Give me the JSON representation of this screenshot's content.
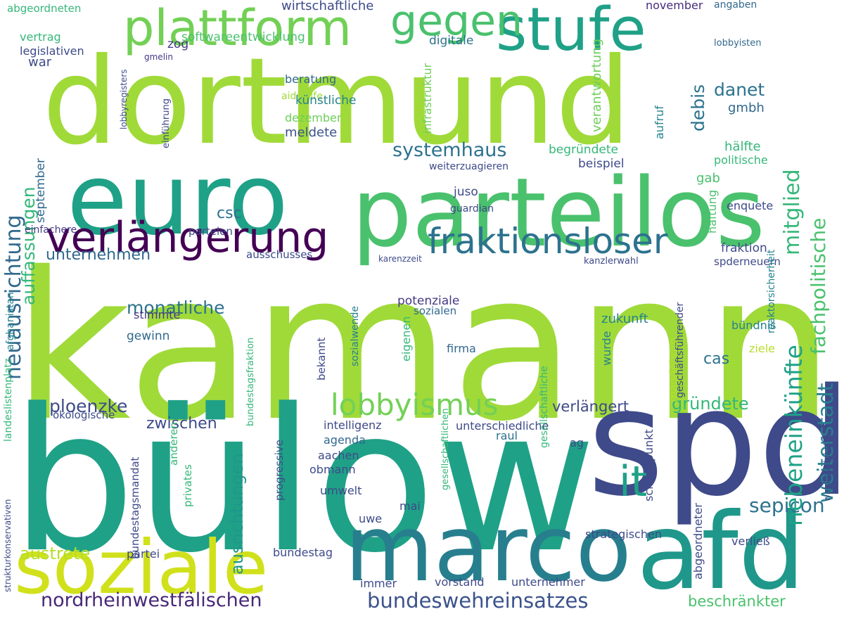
{
  "words": [
    {
      "text": "kamann",
      "color": "#a0da39"
    },
    {
      "text": "bülow",
      "color": "#1fa187"
    },
    {
      "text": "dortmund",
      "color": "#a0da39"
    },
    {
      "text": "euro",
      "color": "#1fa187"
    },
    {
      "text": "parteilos",
      "color": "#4ac16d"
    },
    {
      "text": "spd",
      "color": "#3e4a89"
    },
    {
      "text": "marco",
      "color": "#277f8e"
    },
    {
      "text": "afd",
      "color": "#1f988b"
    },
    {
      "text": "soziale",
      "color": "#d0e11c"
    },
    {
      "text": "stufe",
      "color": "#1fa187"
    },
    {
      "text": "plattform",
      "color": "#73d056"
    },
    {
      "text": "verlängerung",
      "color": "#440154"
    },
    {
      "text": "fraktionsloser",
      "color": "#2c728e"
    },
    {
      "text": "lobbyismus",
      "color": "#73d056"
    },
    {
      "text": "gegen",
      "color": "#4ac16d"
    },
    {
      "text": "it",
      "color": "#1fa187"
    },
    {
      "text": "bundeswehreinsatzes",
      "color": "#3b528b"
    },
    {
      "text": "nordrheinwestfälischen",
      "color": "#482878"
    },
    {
      "text": "systemhaus",
      "color": "#2c728e"
    },
    {
      "text": "sepicon",
      "color": "#2c728e"
    },
    {
      "text": "weiterstadt",
      "color": "#277f8e"
    },
    {
      "text": "nebeneinkünfte",
      "color": "#1fa187"
    },
    {
      "text": "fachpolitische",
      "color": "#4ac16d"
    },
    {
      "text": "mitglied",
      "color": "#35b779"
    },
    {
      "text": "neuausrichtung",
      "color": "#31688e"
    },
    {
      "text": "auffassungen",
      "color": "#35b779"
    },
    {
      "text": "ploenzke",
      "color": "#3e4a89"
    },
    {
      "text": "monatliche",
      "color": "#2c728e"
    },
    {
      "text": "zwischen",
      "color": "#3e4a89"
    },
    {
      "text": "gründete",
      "color": "#35b779"
    },
    {
      "text": "danet",
      "color": "#2c728e"
    },
    {
      "text": "debis",
      "color": "#2c728e"
    },
    {
      "text": "austrete",
      "color": "#b5de2b"
    },
    {
      "text": "unternehmen",
      "color": "#31688e"
    },
    {
      "text": "ausrichtungen",
      "color": "#1f988b"
    },
    {
      "text": "csc",
      "color": "#2c728e"
    },
    {
      "text": "cas",
      "color": "#2c728e"
    },
    {
      "text": "verlängert",
      "color": "#3e4a89"
    },
    {
      "text": "beschränkter",
      "color": "#4ac16d"
    },
    {
      "text": "wirtschaftliche",
      "color": "#3e4a89"
    },
    {
      "text": "softwareentwicklung",
      "color": "#4ac16d"
    },
    {
      "text": "abgeordneten",
      "color": "#35b779"
    },
    {
      "text": "vertrag",
      "color": "#35b779"
    },
    {
      "text": "legislativen",
      "color": "#3e4a89"
    },
    {
      "text": "war",
      "color": "#3e4a89"
    },
    {
      "text": "zog",
      "color": "#443983"
    },
    {
      "text": "gmelin",
      "color": "#443983"
    },
    {
      "text": "beratung",
      "color": "#31688e"
    },
    {
      "text": "aidshilfe",
      "color": "#a0da39"
    },
    {
      "text": "künstliche",
      "color": "#26828e"
    },
    {
      "text": "dezember",
      "color": "#6ece58"
    },
    {
      "text": "meldete",
      "color": "#3b528b"
    },
    {
      "text": "digitale",
      "color": "#2c728e"
    },
    {
      "text": "infrastruktur",
      "color": "#6ece58"
    },
    {
      "text": "verantwortung",
      "color": "#6ece58"
    },
    {
      "text": "november",
      "color": "#472d7b"
    },
    {
      "text": "angaben",
      "color": "#31688e"
    },
    {
      "text": "lobbyisten",
      "color": "#31688e"
    },
    {
      "text": "gmbh",
      "color": "#31688e"
    },
    {
      "text": "aufruf",
      "color": "#26828e"
    },
    {
      "text": "hälfte",
      "color": "#35b779"
    },
    {
      "text": "politische",
      "color": "#35b779"
    },
    {
      "text": "begründete",
      "color": "#35b779"
    },
    {
      "text": "beispiel",
      "color": "#3e4a89"
    },
    {
      "text": "weiterzuagieren",
      "color": "#3e4a89"
    },
    {
      "text": "gab",
      "color": "#4ac16d"
    },
    {
      "text": "haftung",
      "color": "#4ac16d"
    },
    {
      "text": "enquete",
      "color": "#3e4a89"
    },
    {
      "text": "fraktion",
      "color": "#3e4a89"
    },
    {
      "text": "spderneuern",
      "color": "#3e4a89"
    },
    {
      "text": "juso",
      "color": "#3e4a89"
    },
    {
      "text": "guardian",
      "color": "#3e4a89"
    },
    {
      "text": "parteien",
      "color": "#3e4a89"
    },
    {
      "text": "ausschusses",
      "color": "#3e4a89"
    },
    {
      "text": "einfachere",
      "color": "#443983"
    },
    {
      "text": "september",
      "color": "#31688e"
    },
    {
      "text": "potenziale",
      "color": "#443983"
    },
    {
      "text": "sozialen",
      "color": "#31688e"
    },
    {
      "text": "stimmte",
      "color": "#443983"
    },
    {
      "text": "gewinn",
      "color": "#31688e"
    },
    {
      "text": "sozialwende",
      "color": "#277f8e"
    },
    {
      "text": "eigenen",
      "color": "#35b779"
    },
    {
      "text": "zukunft",
      "color": "#26828e"
    },
    {
      "text": "wurde",
      "color": "#26828e"
    },
    {
      "text": "bündnis",
      "color": "#26828e"
    },
    {
      "text": "ziele",
      "color": "#b5de2b"
    },
    {
      "text": "magdeburg",
      "color": "#b5de2b"
    },
    {
      "text": "firma",
      "color": "#31688e"
    },
    {
      "text": "intelligenz",
      "color": "#3e4a89"
    },
    {
      "text": "agenda",
      "color": "#31688e"
    },
    {
      "text": "unterschiedliche",
      "color": "#3e4a89"
    },
    {
      "text": "ag",
      "color": "#3e4a89"
    },
    {
      "text": "raul",
      "color": "#2c728e"
    },
    {
      "text": "aachen",
      "color": "#3e4a89"
    },
    {
      "text": "obmann",
      "color": "#3e4a89"
    },
    {
      "text": "umwelt",
      "color": "#3e4a89"
    },
    {
      "text": "mai",
      "color": "#3e4a89"
    },
    {
      "text": "uwe",
      "color": "#3e4a89"
    },
    {
      "text": "schwerpunkt",
      "color": "#3e4a89"
    },
    {
      "text": "strategischen",
      "color": "#3e4a89"
    },
    {
      "text": "verließ",
      "color": "#3e4a89"
    },
    {
      "text": "bundestag",
      "color": "#3e4a89"
    },
    {
      "text": "partei",
      "color": "#3e4a89"
    },
    {
      "text": "vorstand",
      "color": "#3e4a89"
    },
    {
      "text": "unternehmer",
      "color": "#3e4a89"
    },
    {
      "text": "immer",
      "color": "#3e4a89"
    },
    {
      "text": "abgeordneter",
      "color": "#3e4a89"
    },
    {
      "text": "privates",
      "color": "#35b779"
    },
    {
      "text": "anderen",
      "color": "#35b779"
    },
    {
      "text": "bundestagsmandat",
      "color": "#3e4a89"
    },
    {
      "text": "progressive",
      "color": "#3e4a89"
    },
    {
      "text": "bekannt",
      "color": "#3e4a89"
    },
    {
      "text": "ökologische",
      "color": "#3e4a89"
    },
    {
      "text": "afghanistan",
      "color": "#26828e"
    },
    {
      "text": "landeslistenplatz",
      "color": "#35b779"
    },
    {
      "text": "geschäftsführender",
      "color": "#3e4a89"
    },
    {
      "text": "reaktorsicherheit",
      "color": "#26828e"
    },
    {
      "text": "wahlmüdigkeit",
      "color": "#3e4a89"
    },
    {
      "text": "bundestagsfraktion",
      "color": "#35b779"
    },
    {
      "text": "gesellschaftliche",
      "color": "#35b779"
    },
    {
      "text": "gesellschaftlichen",
      "color": "#35b779"
    },
    {
      "text": "strukturkonservativen",
      "color": "#3e4a89"
    },
    {
      "text": "kanzlerwahl",
      "color": "#3e4a89"
    },
    {
      "text": "karenzzeit",
      "color": "#3e4a89"
    },
    {
      "text": "lobbyregisters",
      "color": "#3e4a89"
    },
    {
      "text": "einführung",
      "color": "#3e4a89"
    }
  ]
}
